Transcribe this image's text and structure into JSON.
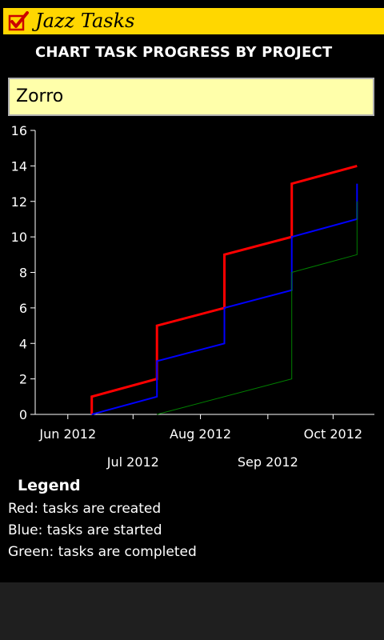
{
  "app": {
    "title": "Jazz Tasks",
    "logo_icon": "checkbox-checked-icon",
    "title_bar_color": "#ffd700"
  },
  "page": {
    "heading": "CHART TASK PROGRESS BY PROJECT"
  },
  "project_select": {
    "value": "Zorro"
  },
  "chart_data": {
    "type": "line",
    "title": "",
    "xlabel": "",
    "ylabel": "",
    "ylim": [
      0,
      16
    ],
    "yticks": [
      "0",
      "2",
      "4",
      "6",
      "8",
      "10",
      "12",
      "14",
      "16"
    ],
    "xticks": [
      {
        "label": "Jun 2012",
        "date": "2012-06-01",
        "row": 1
      },
      {
        "label": "Jul 2012",
        "date": "2012-07-01",
        "row": 2
      },
      {
        "label": "Aug 2012",
        "date": "2012-08-01",
        "row": 1
      },
      {
        "label": "Sep 2012",
        "date": "2012-09-01",
        "row": 2
      },
      {
        "label": "Oct 2012",
        "date": "2012-10-01",
        "row": 1
      }
    ],
    "xlim": [
      "2012-05-17",
      "2012-10-20"
    ],
    "series": [
      {
        "color": "#ff0000",
        "width": 3,
        "points": [
          [
            "2012-06-12",
            0
          ],
          [
            "2012-06-12",
            1
          ],
          [
            "2012-07-12",
            2
          ],
          [
            "2012-07-12",
            5
          ],
          [
            "2012-08-12",
            6
          ],
          [
            "2012-08-12",
            9
          ],
          [
            "2012-09-12",
            10
          ],
          [
            "2012-09-12",
            13
          ],
          [
            "2012-10-12",
            14
          ]
        ]
      },
      {
        "color": "#0000ff",
        "width": 2,
        "points": [
          [
            "2012-06-12",
            0
          ],
          [
            "2012-07-12",
            1
          ],
          [
            "2012-07-12",
            3
          ],
          [
            "2012-08-12",
            4
          ],
          [
            "2012-08-12",
            6
          ],
          [
            "2012-09-12",
            7
          ],
          [
            "2012-09-12",
            10
          ],
          [
            "2012-10-12",
            11
          ],
          [
            "2012-10-12",
            13
          ]
        ]
      },
      {
        "color": "#008000",
        "width": 1,
        "points": [
          [
            "2012-07-12",
            0
          ],
          [
            "2012-09-12",
            2
          ],
          [
            "2012-09-12",
            8
          ],
          [
            "2012-10-12",
            9
          ],
          [
            "2012-10-12",
            12
          ]
        ]
      }
    ]
  },
  "legend": {
    "title": "Legend",
    "items": [
      {
        "text": "Red: tasks are created",
        "color": "#ff0000"
      },
      {
        "text": "Blue: tasks are started",
        "color": "#0000ff"
      },
      {
        "text": "Green: tasks are completed",
        "color": "#008000"
      }
    ]
  }
}
